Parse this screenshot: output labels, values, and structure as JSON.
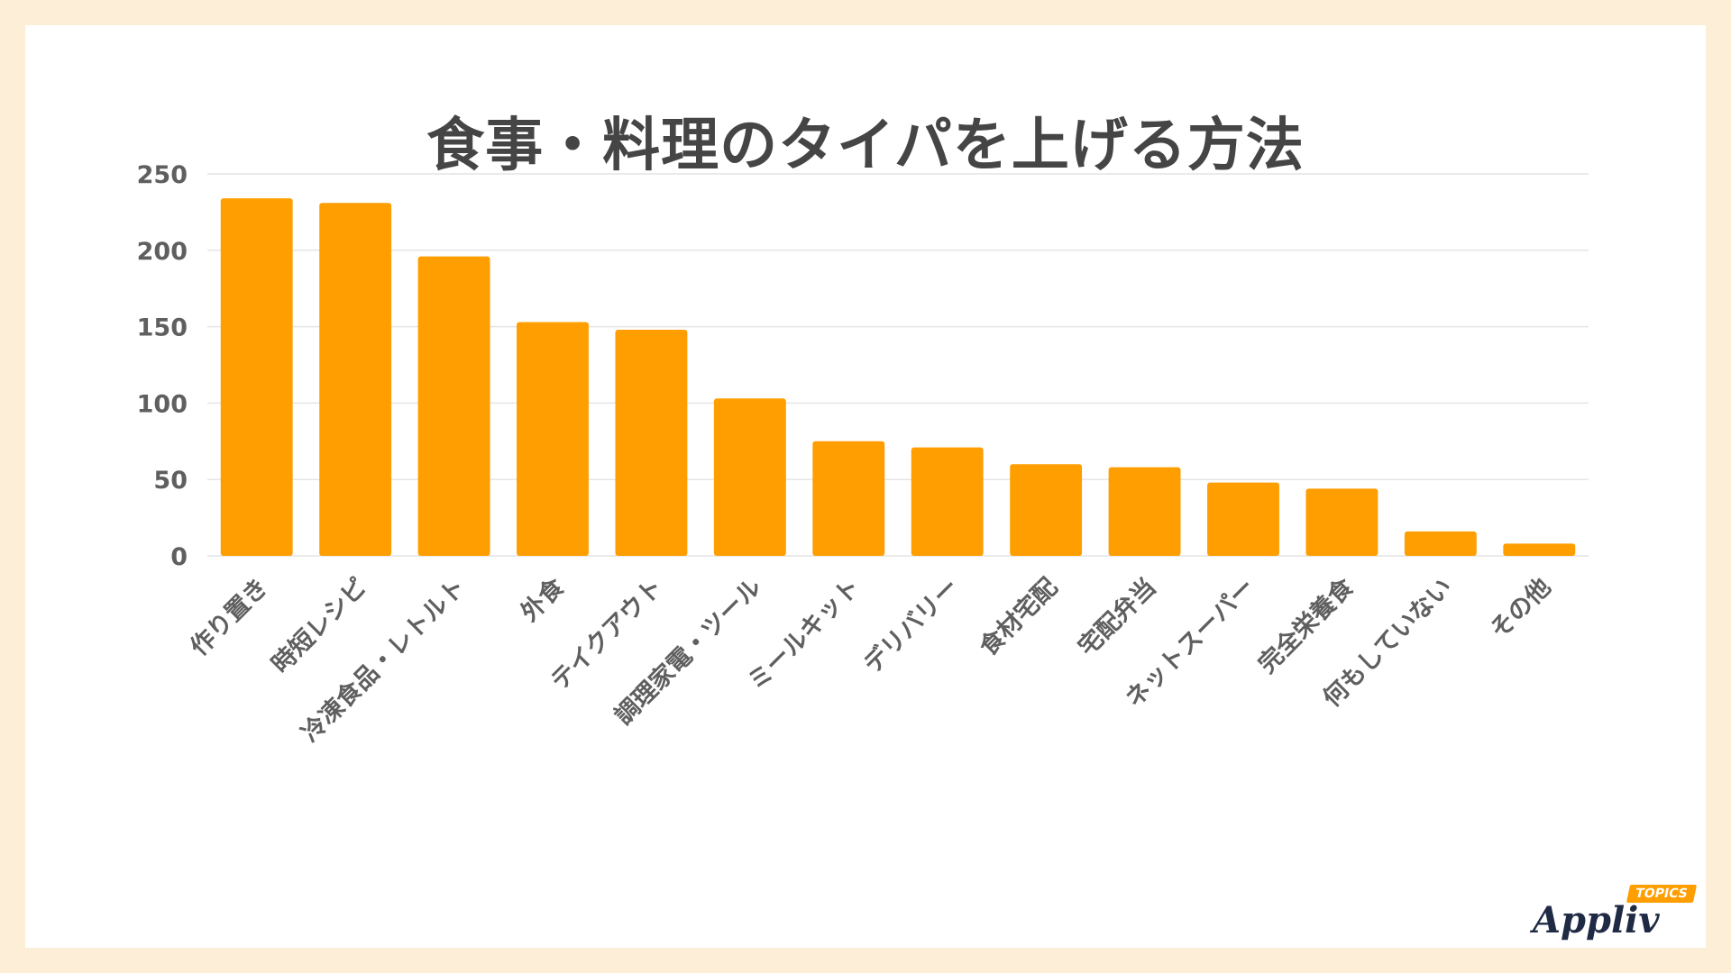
{
  "chart_data": {
    "type": "bar",
    "title": "食事・料理のタイパを上げる方法",
    "categories": [
      "作り置き",
      "時短レシピ",
      "冷凍食品・レトルト",
      "外食",
      "テイクアウト",
      "調理家電・ツール",
      "ミールキット",
      "デリバリー",
      "食材宅配",
      "宅配弁当",
      "ネットスーパー",
      "完全栄養食",
      "何もしていない",
      "その他"
    ],
    "values": [
      234,
      231,
      196,
      153,
      148,
      103,
      75,
      71,
      60,
      58,
      48,
      44,
      16,
      8
    ],
    "ylim": [
      0,
      250
    ],
    "yticks": [
      0,
      50,
      100,
      150,
      200,
      250
    ],
    "grid": true,
    "xlabel": "",
    "ylabel": ""
  },
  "colors": {
    "background": "#fdeed8",
    "panel": "#ffffff",
    "bar": "#ff9e00",
    "text": "#454545",
    "tick_text": "#5f5f5f",
    "grid": "#e4e4e4"
  },
  "brand": {
    "name": "Appliv",
    "tag": "TOPICS"
  }
}
